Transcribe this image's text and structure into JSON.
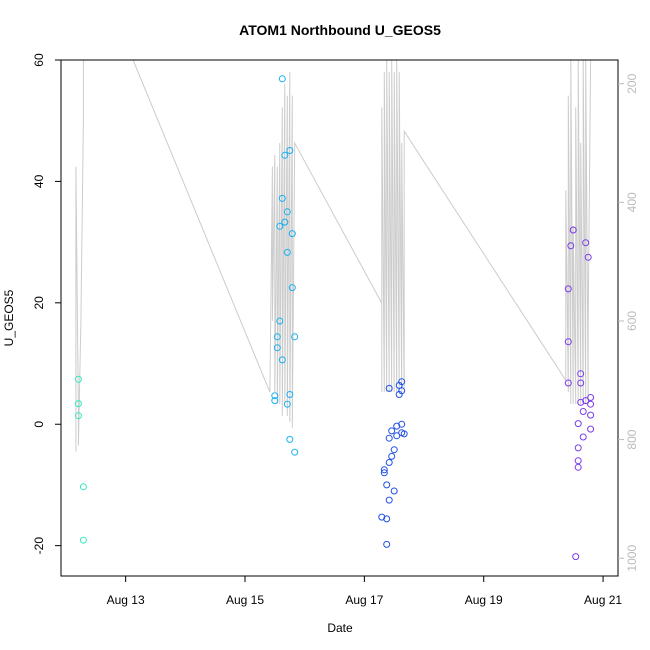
{
  "chart_data": {
    "type": "scatter",
    "title": "ATOM1 Northbound U_GEOS5",
    "xlabel": "Date",
    "ylabel": "U_GEOS5",
    "x_axis": {
      "kind": "date",
      "range": [
        "2016-08-11T22:00",
        "2016-08-21T06:00"
      ],
      "ticks": [
        {
          "value": "2016-08-13",
          "label": "Aug 13"
        },
        {
          "value": "2016-08-15",
          "label": "Aug 15"
        },
        {
          "value": "2016-08-17",
          "label": "Aug 17"
        },
        {
          "value": "2016-08-19",
          "label": "Aug 19"
        },
        {
          "value": "2016-08-21",
          "label": "Aug 21"
        }
      ]
    },
    "y_axis": {
      "range": [
        -25,
        60
      ],
      "ticks": [
        {
          "value": -20,
          "label": "-20"
        },
        {
          "value": 0,
          "label": "0"
        },
        {
          "value": 20,
          "label": "20"
        },
        {
          "value": 40,
          "label": "40"
        },
        {
          "value": 60,
          "label": "60"
        }
      ]
    },
    "y2_axis": {
      "reversed": true,
      "range": [
        1030,
        160
      ],
      "color": "#bbbbbb",
      "ticks": [
        {
          "value": 200,
          "label": "200"
        },
        {
          "value": 400,
          "label": "400"
        },
        {
          "value": 600,
          "label": "600"
        },
        {
          "value": 800,
          "label": "800"
        },
        {
          "value": 1000,
          "label": "1000"
        }
      ]
    },
    "grid": false,
    "legend": "none",
    "line_color": "#cccccc",
    "point_series": [
      {
        "color": "#33e8c0",
        "points": [
          [
            "2016-08-12T05:00",
            7.4
          ],
          [
            "2016-08-12T05:00",
            3.4
          ],
          [
            "2016-08-12T05:00",
            1.4
          ],
          [
            "2016-08-12T07:00",
            -10.3
          ],
          [
            "2016-08-12T07:00",
            -19.1
          ]
        ]
      },
      {
        "color": "#1ab0f0",
        "points": [
          [
            "2016-08-15T12:00",
            4.7
          ],
          [
            "2016-08-15T12:00",
            3.9
          ],
          [
            "2016-08-15T13:00",
            14.4
          ],
          [
            "2016-08-15T13:00",
            12.6
          ],
          [
            "2016-08-15T14:00",
            17.0
          ],
          [
            "2016-08-15T14:00",
            32.6
          ],
          [
            "2016-08-15T15:00",
            56.9
          ],
          [
            "2016-08-15T15:00",
            37.2
          ],
          [
            "2016-08-15T15:00",
            10.6
          ],
          [
            "2016-08-15T16:00",
            33.3
          ],
          [
            "2016-08-15T16:00",
            44.3
          ],
          [
            "2016-08-15T17:00",
            35.0
          ],
          [
            "2016-08-15T17:00",
            28.3
          ],
          [
            "2016-08-15T17:00",
            3.3
          ],
          [
            "2016-08-15T18:00",
            45.1
          ],
          [
            "2016-08-15T18:00",
            4.9
          ],
          [
            "2016-08-15T18:00",
            -2.5
          ],
          [
            "2016-08-15T19:00",
            31.4
          ],
          [
            "2016-08-15T19:00",
            22.5
          ],
          [
            "2016-08-15T20:00",
            14.4
          ],
          [
            "2016-08-15T20:00",
            -4.6
          ]
        ]
      },
      {
        "color": "#2050e8",
        "points": [
          [
            "2016-08-17T10:00",
            5.9
          ],
          [
            "2016-08-17T08:00",
            -7.5
          ],
          [
            "2016-08-17T08:00",
            -8.0
          ],
          [
            "2016-08-17T07:00",
            -15.3
          ],
          [
            "2016-08-17T09:00",
            -15.6
          ],
          [
            "2016-08-17T09:00",
            -19.8
          ],
          [
            "2016-08-17T09:00",
            -10.0
          ],
          [
            "2016-08-17T10:00",
            -12.5
          ],
          [
            "2016-08-17T10:00",
            -6.3
          ],
          [
            "2016-08-17T10:00",
            -2.3
          ],
          [
            "2016-08-17T11:00",
            -5.3
          ],
          [
            "2016-08-17T11:00",
            -1.1
          ],
          [
            "2016-08-17T12:00",
            -11.0
          ],
          [
            "2016-08-17T12:00",
            -4.2
          ],
          [
            "2016-08-17T13:00",
            -0.3
          ],
          [
            "2016-08-17T13:00",
            -1.9
          ],
          [
            "2016-08-17T14:00",
            6.4
          ],
          [
            "2016-08-17T14:00",
            4.9
          ],
          [
            "2016-08-17T15:00",
            0.0
          ],
          [
            "2016-08-17T15:00",
            -1.4
          ],
          [
            "2016-08-17T15:00",
            7.0
          ],
          [
            "2016-08-17T15:00",
            5.5
          ],
          [
            "2016-08-17T16:00",
            -1.6
          ]
        ]
      },
      {
        "color": "#7a3ce8",
        "points": [
          [
            "2016-08-20T10:00",
            22.3
          ],
          [
            "2016-08-20T10:00",
            13.6
          ],
          [
            "2016-08-20T10:00",
            6.8
          ],
          [
            "2016-08-20T11:00",
            29.4
          ],
          [
            "2016-08-20T12:00",
            32.0
          ],
          [
            "2016-08-20T13:00",
            -21.8
          ],
          [
            "2016-08-20T14:00",
            -7.1
          ],
          [
            "2016-08-20T14:00",
            -6.0
          ],
          [
            "2016-08-20T14:00",
            -3.9
          ],
          [
            "2016-08-20T14:00",
            0.1
          ],
          [
            "2016-08-20T15:00",
            3.6
          ],
          [
            "2016-08-20T15:00",
            8.3
          ],
          [
            "2016-08-20T15:00",
            6.8
          ],
          [
            "2016-08-20T16:00",
            2.1
          ],
          [
            "2016-08-20T16:00",
            -2.1
          ],
          [
            "2016-08-20T17:00",
            29.9
          ],
          [
            "2016-08-20T17:00",
            3.9
          ],
          [
            "2016-08-20T18:00",
            27.5
          ],
          [
            "2016-08-20T19:00",
            4.4
          ],
          [
            "2016-08-20T19:00",
            3.3
          ],
          [
            "2016-08-20T19:00",
            1.5
          ],
          [
            "2016-08-20T19:00",
            -0.8
          ]
        ]
      }
    ],
    "line_series": {
      "axis": "y2",
      "points": [
        [
          "2016-08-12T04:00",
          820
        ],
        [
          "2016-08-12T04:00",
          340
        ],
        [
          "2016-08-12T05:00",
          760
        ],
        [
          "2016-08-12T05:00",
          810
        ],
        [
          "2016-08-12T06:00",
          600
        ],
        [
          "2016-08-12T07:00",
          260
        ],
        [
          "2016-08-12T07:00",
          150
        ],
        [
          "2016-08-13T03:00",
          160
        ],
        [
          "2016-08-15T10:00",
          720
        ],
        [
          "2016-08-15T11:00",
          340
        ],
        [
          "2016-08-15T11:00",
          600
        ],
        [
          "2016-08-15T12:00",
          320
        ],
        [
          "2016-08-15T12:00",
          720
        ],
        [
          "2016-08-15T13:00",
          340
        ],
        [
          "2016-08-15T13:00",
          740
        ],
        [
          "2016-08-15T14:00",
          300
        ],
        [
          "2016-08-15T14:00",
          740
        ],
        [
          "2016-08-15T15:00",
          240
        ],
        [
          "2016-08-15T15:00",
          760
        ],
        [
          "2016-08-15T16:00",
          200
        ],
        [
          "2016-08-15T16:00",
          740
        ],
        [
          "2016-08-15T17:00",
          220
        ],
        [
          "2016-08-15T17:00",
          760
        ],
        [
          "2016-08-15T18:00",
          180
        ],
        [
          "2016-08-15T18:00",
          770
        ],
        [
          "2016-08-15T19:00",
          220
        ],
        [
          "2016-08-15T19:00",
          780
        ],
        [
          "2016-08-15T20:00",
          300
        ],
        [
          "2016-08-17T07:00",
          570
        ],
        [
          "2016-08-17T07:00",
          720
        ],
        [
          "2016-08-17T07:00",
          240
        ],
        [
          "2016-08-17T08:00",
          720
        ],
        [
          "2016-08-17T08:00",
          180
        ],
        [
          "2016-08-17T09:00",
          720
        ],
        [
          "2016-08-17T09:00",
          160
        ],
        [
          "2016-08-17T10:00",
          720
        ],
        [
          "2016-08-17T10:00",
          180
        ],
        [
          "2016-08-17T11:00",
          720
        ],
        [
          "2016-08-17T11:00",
          160
        ],
        [
          "2016-08-17T12:00",
          720
        ],
        [
          "2016-08-17T12:00",
          180
        ],
        [
          "2016-08-17T13:00",
          720
        ],
        [
          "2016-08-17T13:00",
          160
        ],
        [
          "2016-08-17T14:00",
          720
        ],
        [
          "2016-08-17T14:00",
          180
        ],
        [
          "2016-08-17T15:00",
          720
        ],
        [
          "2016-08-17T15:00",
          300
        ],
        [
          "2016-08-17T16:00",
          720
        ],
        [
          "2016-08-17T16:00",
          280
        ],
        [
          "2016-08-20T09:00",
          700
        ],
        [
          "2016-08-20T09:00",
          380
        ],
        [
          "2016-08-20T10:00",
          720
        ],
        [
          "2016-08-20T10:00",
          220
        ],
        [
          "2016-08-20T11:00",
          740
        ],
        [
          "2016-08-20T11:00",
          160
        ],
        [
          "2016-08-20T12:00",
          740
        ],
        [
          "2016-08-20T12:00",
          440
        ],
        [
          "2016-08-20T13:00",
          740
        ],
        [
          "2016-08-20T13:00",
          240
        ],
        [
          "2016-08-20T14:00",
          740
        ],
        [
          "2016-08-20T14:00",
          160
        ],
        [
          "2016-08-20T15:00",
          740
        ],
        [
          "2016-08-20T15:00",
          300
        ],
        [
          "2016-08-20T16:00",
          740
        ],
        [
          "2016-08-20T16:00",
          160
        ],
        [
          "2016-08-20T17:00",
          740
        ],
        [
          "2016-08-20T17:00",
          160
        ],
        [
          "2016-08-20T18:00",
          740
        ],
        [
          "2016-08-20T18:00",
          600
        ],
        [
          "2016-08-20T19:00",
          160
        ]
      ]
    }
  }
}
